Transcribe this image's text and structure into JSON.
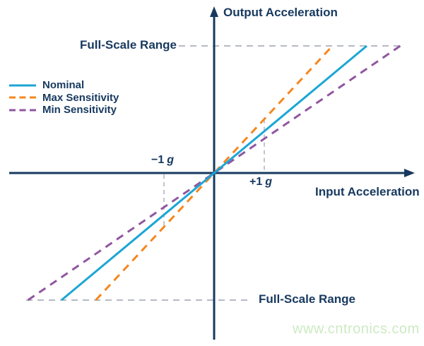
{
  "colors": {
    "axis_navy": "#17395f",
    "reference_dash_gray": "#b7bac6",
    "marker_dash_gray": "#c3c5cf",
    "nominal_cyan": "#1ba6d4",
    "max_sensitivity_orange": "#f6861f",
    "min_sensitivity_purple": "#9156a0",
    "watermark_green": "#cdeac3"
  },
  "chart_data": {
    "type": "line",
    "title": "",
    "xlabel": "Input Acceleration",
    "ylabel": "Output Acceleration",
    "grid": false,
    "legend_position": "upper-left",
    "axes_through_origin": true,
    "series": [
      {
        "name": "Nominal",
        "color": "#1ba6d4",
        "line_style": "solid",
        "relative_sensitivity": 1.0,
        "passes_through_origin": true
      },
      {
        "name": "Max Sensitivity",
        "color": "#f6861f",
        "line_style": "dashed",
        "relative_sensitivity": 1.29,
        "passes_through_origin": true
      },
      {
        "name": "Min Sensitivity",
        "color": "#9156a0",
        "line_style": "dashed",
        "relative_sensitivity": 0.82,
        "passes_through_origin": true
      }
    ],
    "x_markers": [
      {
        "value": "−1",
        "unit": "g",
        "x_g": -1
      },
      {
        "value": "+1",
        "unit": "g",
        "x_g": 1
      }
    ],
    "reference_lines": {
      "top_label": "Full-Scale Range",
      "bottom_label": "Full-Scale Range",
      "meaning": "output saturation level at positive and negative full scale"
    }
  },
  "watermark": "www.cntronics.com"
}
